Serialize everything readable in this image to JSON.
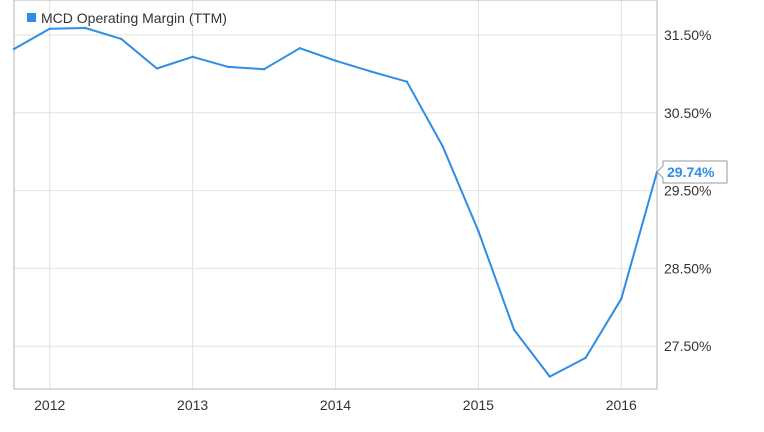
{
  "chart_data": {
    "type": "line",
    "title": "",
    "xlabel": "",
    "ylabel": "",
    "legend": {
      "position": "top-left"
    },
    "grid": true,
    "x_ticks": [
      "2012",
      "2013",
      "2014",
      "2015",
      "2016"
    ],
    "y_ticks": [
      "27.50%",
      "28.50%",
      "29.50%",
      "30.50%",
      "31.50%"
    ],
    "xlim": [
      2011.75,
      2016.25
    ],
    "ylim": [
      26.95,
      31.95
    ],
    "series": [
      {
        "name": "MCD Operating Margin (TTM)",
        "color": "#2f8de4",
        "x": [
          2011.75,
          2012.0,
          2012.25,
          2012.5,
          2012.75,
          2013.0,
          2013.25,
          2013.5,
          2013.75,
          2014.0,
          2014.25,
          2014.5,
          2014.75,
          2015.0,
          2015.25,
          2015.5,
          2015.75,
          2016.0,
          2016.25
        ],
        "y": [
          31.32,
          31.58,
          31.59,
          31.45,
          31.07,
          31.22,
          31.09,
          31.06,
          31.33,
          31.17,
          31.03,
          30.9,
          30.07,
          28.98,
          27.71,
          27.11,
          27.35,
          28.11,
          29.74
        ],
        "end_label": "29.74%"
      }
    ]
  }
}
